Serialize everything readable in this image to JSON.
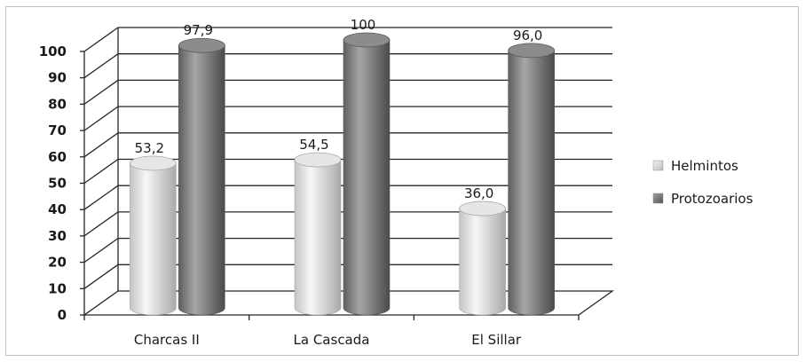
{
  "chart_data": {
    "type": "bar",
    "title": "",
    "xlabel": "",
    "ylabel": "",
    "categories": [
      "Charcas II",
      "La Cascada",
      "El Sillar"
    ],
    "series": [
      {
        "name": "Helmintos",
        "values": [
          53.2,
          54.5,
          36.0
        ],
        "labels": [
          "53,2",
          "54,5",
          "36,0"
        ],
        "color": "#d9d9d9"
      },
      {
        "name": "Protozoarios",
        "values": [
          97.9,
          100,
          96.0
        ],
        "labels": [
          "97,9",
          "100",
          "96,0"
        ],
        "color": "#7f7f7f"
      }
    ],
    "ylim": [
      0,
      100
    ],
    "yticks": [
      0,
      10,
      20,
      30,
      40,
      50,
      60,
      70,
      80,
      90,
      100
    ],
    "grid": true,
    "legend": "right",
    "style": "3d-cylinder"
  }
}
